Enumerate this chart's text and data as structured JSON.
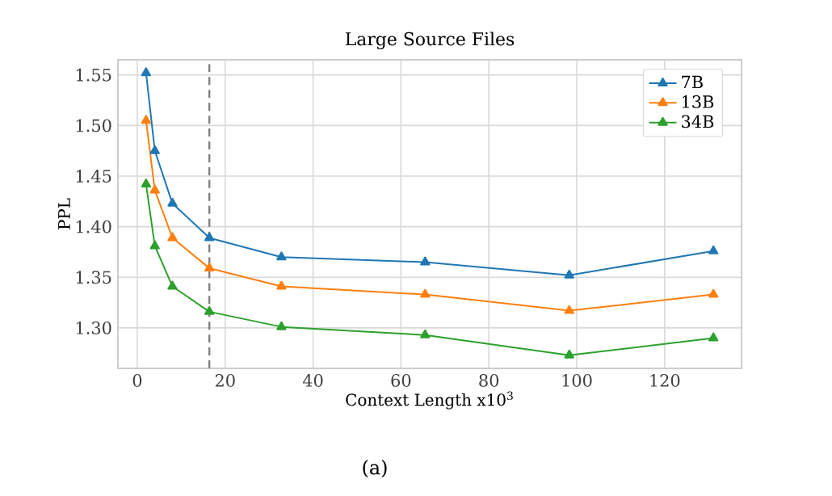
{
  "chart_data": {
    "type": "line",
    "title": "Large Source Files",
    "xlabel": "Context Length x10$^{3}$",
    "ylabel": "PPL",
    "annotations": [
      "(a)"
    ],
    "x": [
      2,
      4,
      8,
      16.4,
      32.8,
      65.5,
      98.3,
      131.1
    ],
    "series": [
      {
        "name": "7B",
        "color": "#1f77b4",
        "values": [
          1.552,
          1.475,
          1.423,
          1.389,
          1.37,
          1.365,
          1.352,
          1.376
        ]
      },
      {
        "name": "13B",
        "color": "#ff7f0e",
        "values": [
          1.505,
          1.436,
          1.389,
          1.359,
          1.341,
          1.333,
          1.317,
          1.333
        ]
      },
      {
        "name": "34B",
        "color": "#2ca02c",
        "values": [
          1.442,
          1.381,
          1.341,
          1.316,
          1.301,
          1.293,
          1.273,
          1.29
        ]
      }
    ],
    "xlim": [
      -4.4,
      137.5
    ],
    "ylim": [
      1.26,
      1.565
    ],
    "xticks": [
      0,
      20,
      40,
      60,
      80,
      100,
      120
    ],
    "yticks": [
      {
        "value": 1.3,
        "label": "1.30"
      },
      {
        "value": 1.35,
        "label": "1.35"
      },
      {
        "value": 1.4,
        "label": "1.40"
      },
      {
        "value": 1.45,
        "label": "1.45"
      },
      {
        "value": 1.5,
        "label": "1.50"
      },
      {
        "value": 1.55,
        "label": "1.55"
      }
    ],
    "ref_lines": [
      {
        "axis": "x",
        "value": 16.4,
        "color": "#808080",
        "line_style": "dashed"
      }
    ],
    "grid": true,
    "legend": "top right",
    "marker": "triangle",
    "line_style": "solid"
  }
}
